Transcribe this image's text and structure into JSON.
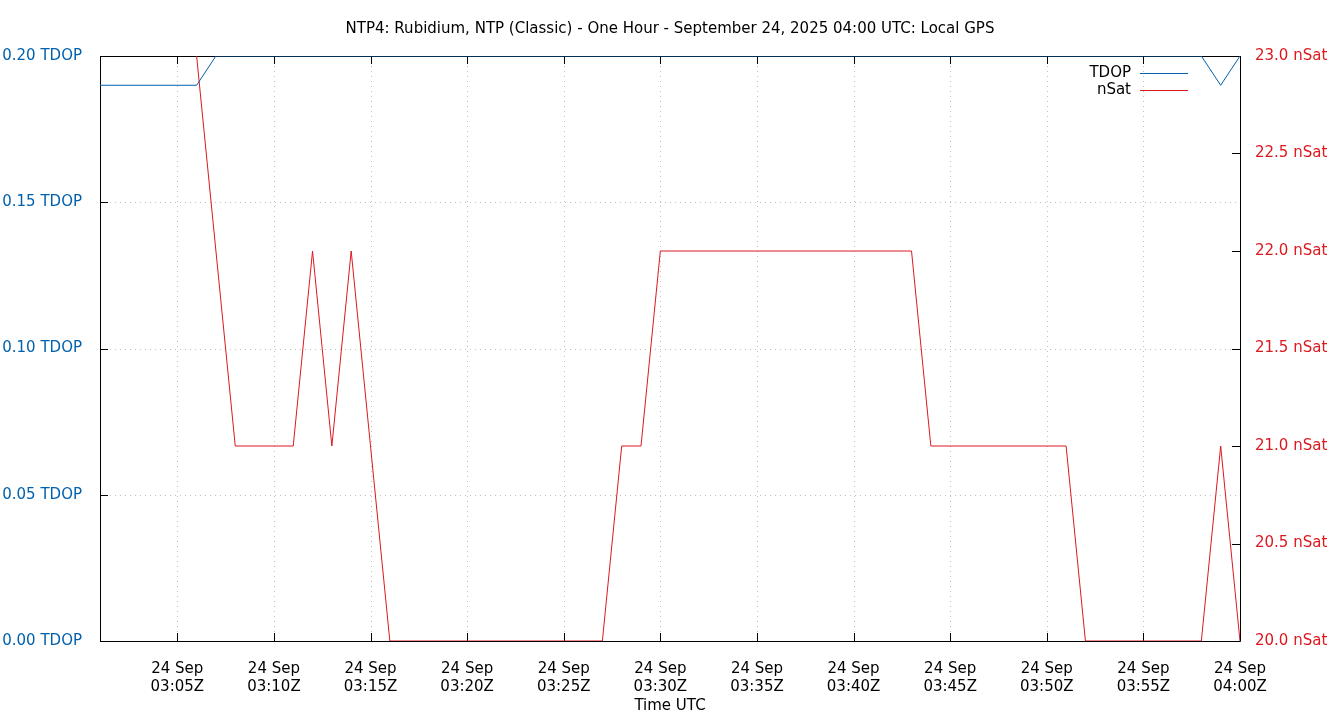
{
  "chart_data": {
    "type": "line",
    "title": "NTP4: Rubidium, NTP (Classic) - One Hour - September 24, 2025 04:00 UTC: Local GPS",
    "xlabel": "Time UTC",
    "series": [
      {
        "name": "TDOP",
        "color": "#0060ad",
        "x": [
          "2025-09-24T03:01",
          "2025-09-24T03:06",
          "2025-09-24T03:07",
          "2025-09-24T03:58",
          "2025-09-24T03:59",
          "2025-09-24T04:00"
        ],
        "values": [
          0.19,
          0.19,
          0.2,
          0.2,
          0.19,
          0.2
        ]
      },
      {
        "name": "nSat",
        "color": "#dd181f",
        "axis": "y2",
        "x": [
          "2025-09-24T03:06",
          "2025-09-24T03:08",
          "2025-09-24T03:11",
          "2025-09-24T03:12",
          "2025-09-24T03:13",
          "2025-09-24T03:14",
          "2025-09-24T03:16",
          "2025-09-24T03:27",
          "2025-09-24T03:28",
          "2025-09-24T03:29",
          "2025-09-24T03:30",
          "2025-09-24T03:43",
          "2025-09-24T03:44",
          "2025-09-24T03:51",
          "2025-09-24T03:52",
          "2025-09-24T03:58",
          "2025-09-24T03:59",
          "2025-09-24T04:00"
        ],
        "values": [
          23,
          21,
          21,
          22,
          21,
          22,
          20,
          20,
          21,
          21,
          22,
          22,
          21,
          21,
          20,
          20,
          21,
          20
        ]
      }
    ],
    "xlim": [
      "2025-09-24T03:01",
      "2025-09-24T04:00"
    ],
    "xticks": [
      {
        "value": "2025-09-24T03:05",
        "label": "24 Sep\n03:05Z"
      },
      {
        "value": "2025-09-24T03:10",
        "label": "24 Sep\n03:10Z"
      },
      {
        "value": "2025-09-24T03:15",
        "label": "24 Sep\n03:15Z"
      },
      {
        "value": "2025-09-24T03:20",
        "label": "24 Sep\n03:20Z"
      },
      {
        "value": "2025-09-24T03:25",
        "label": "24 Sep\n03:25Z"
      },
      {
        "value": "2025-09-24T03:30",
        "label": "24 Sep\n03:30Z"
      },
      {
        "value": "2025-09-24T03:35",
        "label": "24 Sep\n03:35Z"
      },
      {
        "value": "2025-09-24T03:40",
        "label": "24 Sep\n03:40Z"
      },
      {
        "value": "2025-09-24T03:45",
        "label": "24 Sep\n03:45Z"
      },
      {
        "value": "2025-09-24T03:50",
        "label": "24 Sep\n03:50Z"
      },
      {
        "value": "2025-09-24T03:55",
        "label": "24 Sep\n03:55Z"
      },
      {
        "value": "2025-09-24T04:00",
        "label": "24 Sep\n04:00Z"
      }
    ],
    "ylim": [
      0,
      0.2
    ],
    "yticks": [
      {
        "value": 0,
        "label": "0.00 TDOP"
      },
      {
        "value": 0.05,
        "label": "0.05 TDOP"
      },
      {
        "value": 0.1,
        "label": "0.10 TDOP"
      },
      {
        "value": 0.15,
        "label": "0.15 TDOP"
      },
      {
        "value": 0.2,
        "label": "0.20 TDOP"
      }
    ],
    "y2lim": [
      20,
      23
    ],
    "y2ticks": [
      {
        "value": 20,
        "label": "20.0 nSat"
      },
      {
        "value": 20.5,
        "label": "20.5 nSat"
      },
      {
        "value": 21,
        "label": "21.0 nSat"
      },
      {
        "value": 21.5,
        "label": "21.5 nSat"
      },
      {
        "value": 22,
        "label": "22.0 nSat"
      },
      {
        "value": 22.5,
        "label": "22.5 nSat"
      },
      {
        "value": 23,
        "label": "23.0 nSat"
      }
    ],
    "grid": true,
    "legend": "top right",
    "marker": "none",
    "line_style": "solid"
  }
}
